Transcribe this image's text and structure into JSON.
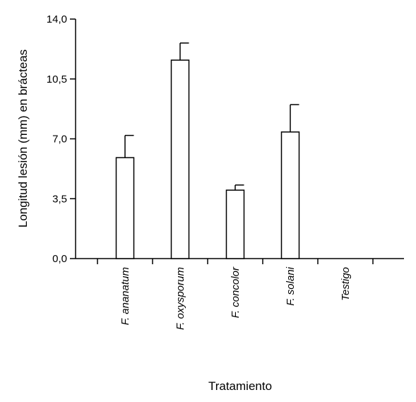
{
  "chart_data": {
    "type": "bar",
    "title": "",
    "xlabel": "Tratamiento",
    "ylabel": "Longitud  lesión (mm) en brácteas",
    "categories": [
      "F. ananatum",
      "F. oxysporum",
      "F. concolor",
      "F. solani",
      "Testigo"
    ],
    "values": [
      5.9,
      11.6,
      4.0,
      7.4,
      0.0
    ],
    "error": [
      1.3,
      1.0,
      0.3,
      1.6,
      0.0
    ],
    "ylim": [
      0,
      14
    ],
    "yticks": [
      0,
      3.5,
      7,
      10.5,
      14
    ],
    "ytick_labels": [
      "0,0",
      "3,5",
      "7,0",
      "10,5",
      "14,0"
    ],
    "grid": false,
    "legend": "none",
    "bar_fill": "#ffffff",
    "bar_stroke": "#000000"
  }
}
